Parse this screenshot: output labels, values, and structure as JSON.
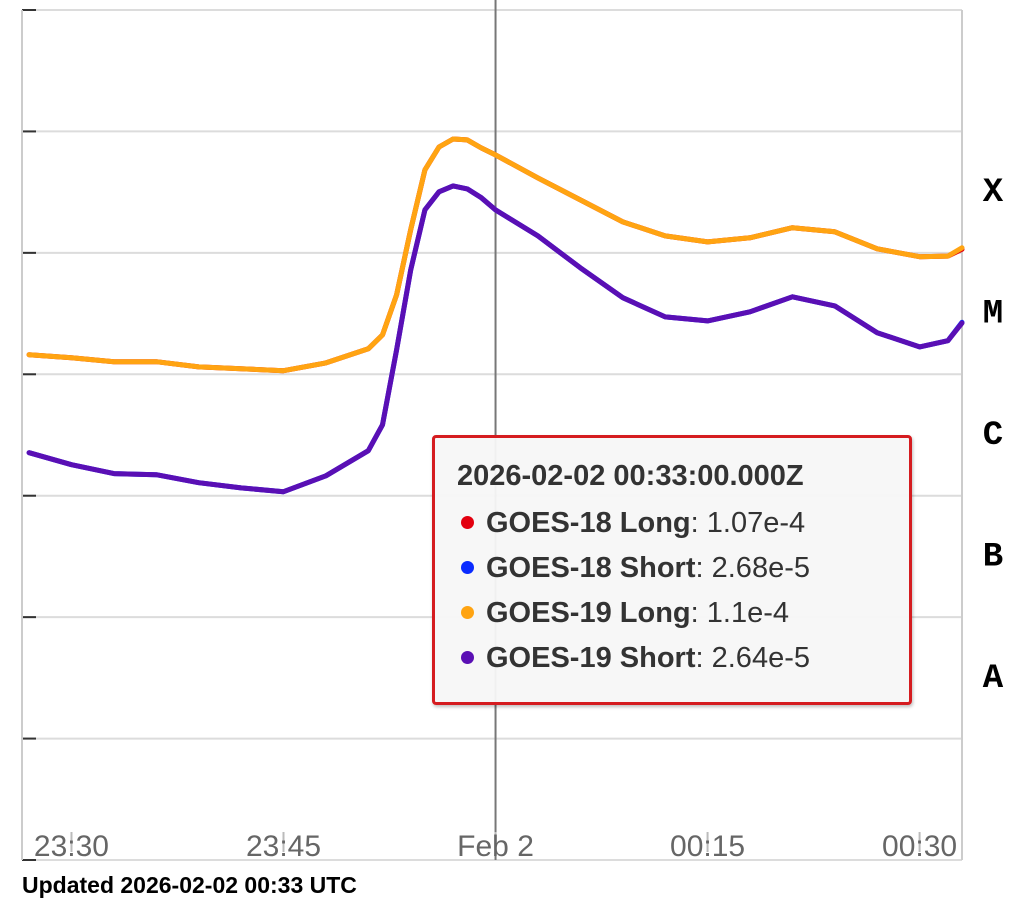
{
  "chart_data": {
    "type": "line",
    "yscale": "log",
    "grid": true,
    "x": [
      "2026-02-01T23:27",
      "2026-02-01T23:30",
      "2026-02-01T23:33",
      "2026-02-01T23:36",
      "2026-02-01T23:39",
      "2026-02-01T23:42",
      "2026-02-01T23:45",
      "2026-02-01T23:48",
      "2026-02-01T23:51",
      "2026-02-01T23:52",
      "2026-02-01T23:53",
      "2026-02-01T23:54",
      "2026-02-01T23:55",
      "2026-02-01T23:56",
      "2026-02-01T23:57",
      "2026-02-01T23:58",
      "2026-02-01T23:59",
      "2026-02-02T00:00",
      "2026-02-02T00:03",
      "2026-02-02T00:06",
      "2026-02-02T00:09",
      "2026-02-02T00:12",
      "2026-02-02T00:15",
      "2026-02-02T00:18",
      "2026-02-02T00:21",
      "2026-02-02T00:24",
      "2026-02-02T00:27",
      "2026-02-02T00:30",
      "2026-02-02T00:32",
      "2026-02-02T00:33"
    ],
    "series": [
      {
        "name": "GOES-18 Long",
        "color": "#e3000f",
        "values": [
          1.45e-05,
          1.37e-05,
          1.27e-05,
          1.27e-05,
          1.15e-05,
          1.11e-05,
          1.07e-05,
          1.24e-05,
          1.62e-05,
          2.11e-05,
          4.51e-05,
          0.000155,
          0.000482,
          0.000745,
          0.000867,
          0.000851,
          0.00073,
          0.000641,
          0.000414,
          0.000273,
          0.00018,
          0.000138,
          0.000123,
          0.000133,
          0.000161,
          0.000149,
          0.000108,
          9.3e-05,
          9.4e-05,
          0.000107
        ]
      },
      {
        "name": "GOES-18 Short",
        "color": "#0a2bff",
        "values": [
          2.26e-06,
          1.8e-06,
          1.52e-06,
          1.49e-06,
          1.28e-06,
          1.16e-06,
          1.08e-06,
          1.46e-06,
          2.35e-06,
          3.84e-06,
          1.59e-05,
          7.24e-05,
          0.000226,
          0.000318,
          0.000356,
          0.000336,
          0.000284,
          0.000226,
          0.000138,
          7.53e-05,
          4.27e-05,
          2.97e-05,
          2.75e-05,
          3.27e-05,
          4.35e-05,
          3.66e-05,
          2.2e-05,
          1.68e-05,
          1.89e-05,
          2.68e-05
        ]
      },
      {
        "name": "GOES-19 Long",
        "color": "#ffa412",
        "values": [
          1.45e-05,
          1.37e-05,
          1.27e-05,
          1.27e-05,
          1.15e-05,
          1.11e-05,
          1.07e-05,
          1.24e-05,
          1.62e-05,
          2.11e-05,
          4.51e-05,
          0.000155,
          0.000482,
          0.000745,
          0.000867,
          0.000851,
          0.00073,
          0.000641,
          0.000414,
          0.000273,
          0.00018,
          0.000138,
          0.000123,
          0.000133,
          0.000161,
          0.000149,
          0.000108,
          9.3e-05,
          9.4e-05,
          0.00011
        ]
      },
      {
        "name": "GOES-19 Short",
        "color": "#5a0fb4",
        "values": [
          2.26e-06,
          1.8e-06,
          1.52e-06,
          1.49e-06,
          1.28e-06,
          1.16e-06,
          1.08e-06,
          1.46e-06,
          2.35e-06,
          3.84e-06,
          1.59e-05,
          7.24e-05,
          0.000226,
          0.000318,
          0.000356,
          0.000336,
          0.000284,
          0.000226,
          0.000138,
          7.53e-05,
          4.27e-05,
          2.97e-05,
          2.75e-05,
          3.27e-05,
          4.35e-05,
          3.66e-05,
          2.2e-05,
          1.68e-05,
          1.89e-05,
          2.64e-05
        ]
      }
    ],
    "xlim": [
      "2026-02-01T23:26:30",
      "2026-02-02T00:33"
    ],
    "xticks": [
      {
        "value": "2026-02-01T23:30",
        "label": "23:30"
      },
      {
        "value": "2026-02-01T23:45",
        "label": "23:45"
      },
      {
        "value": "2026-02-02T00:00",
        "label": "Feb 2"
      },
      {
        "value": "2026-02-02T00:15",
        "label": "00:15"
      },
      {
        "value": "2026-02-02T00:30",
        "label": "00:30"
      }
    ],
    "plot_lines": [
      "2026-02-02T00:00"
    ],
    "ylim": [
      1e-09,
      0.01
    ],
    "yticks": [
      1e-09,
      1e-08,
      1e-07,
      1e-06,
      1e-05,
      0.0001,
      0.001,
      0.01
    ],
    "class_labels": [
      {
        "value": 0.0001,
        "label": "X"
      },
      {
        "value": 1e-05,
        "label": "M"
      },
      {
        "value": 1e-06,
        "label": "C"
      },
      {
        "value": 1e-07,
        "label": "B"
      },
      {
        "value": 1e-08,
        "label": "A"
      }
    ],
    "tooltip": {
      "title": "2026-02-02 00:33:00.000Z",
      "value_labels": [
        "1.07e-4",
        "2.68e-5",
        "1.1e-4",
        "2.64e-5"
      ]
    },
    "footer": "Updated 2026-02-02 00:33 UTC"
  }
}
